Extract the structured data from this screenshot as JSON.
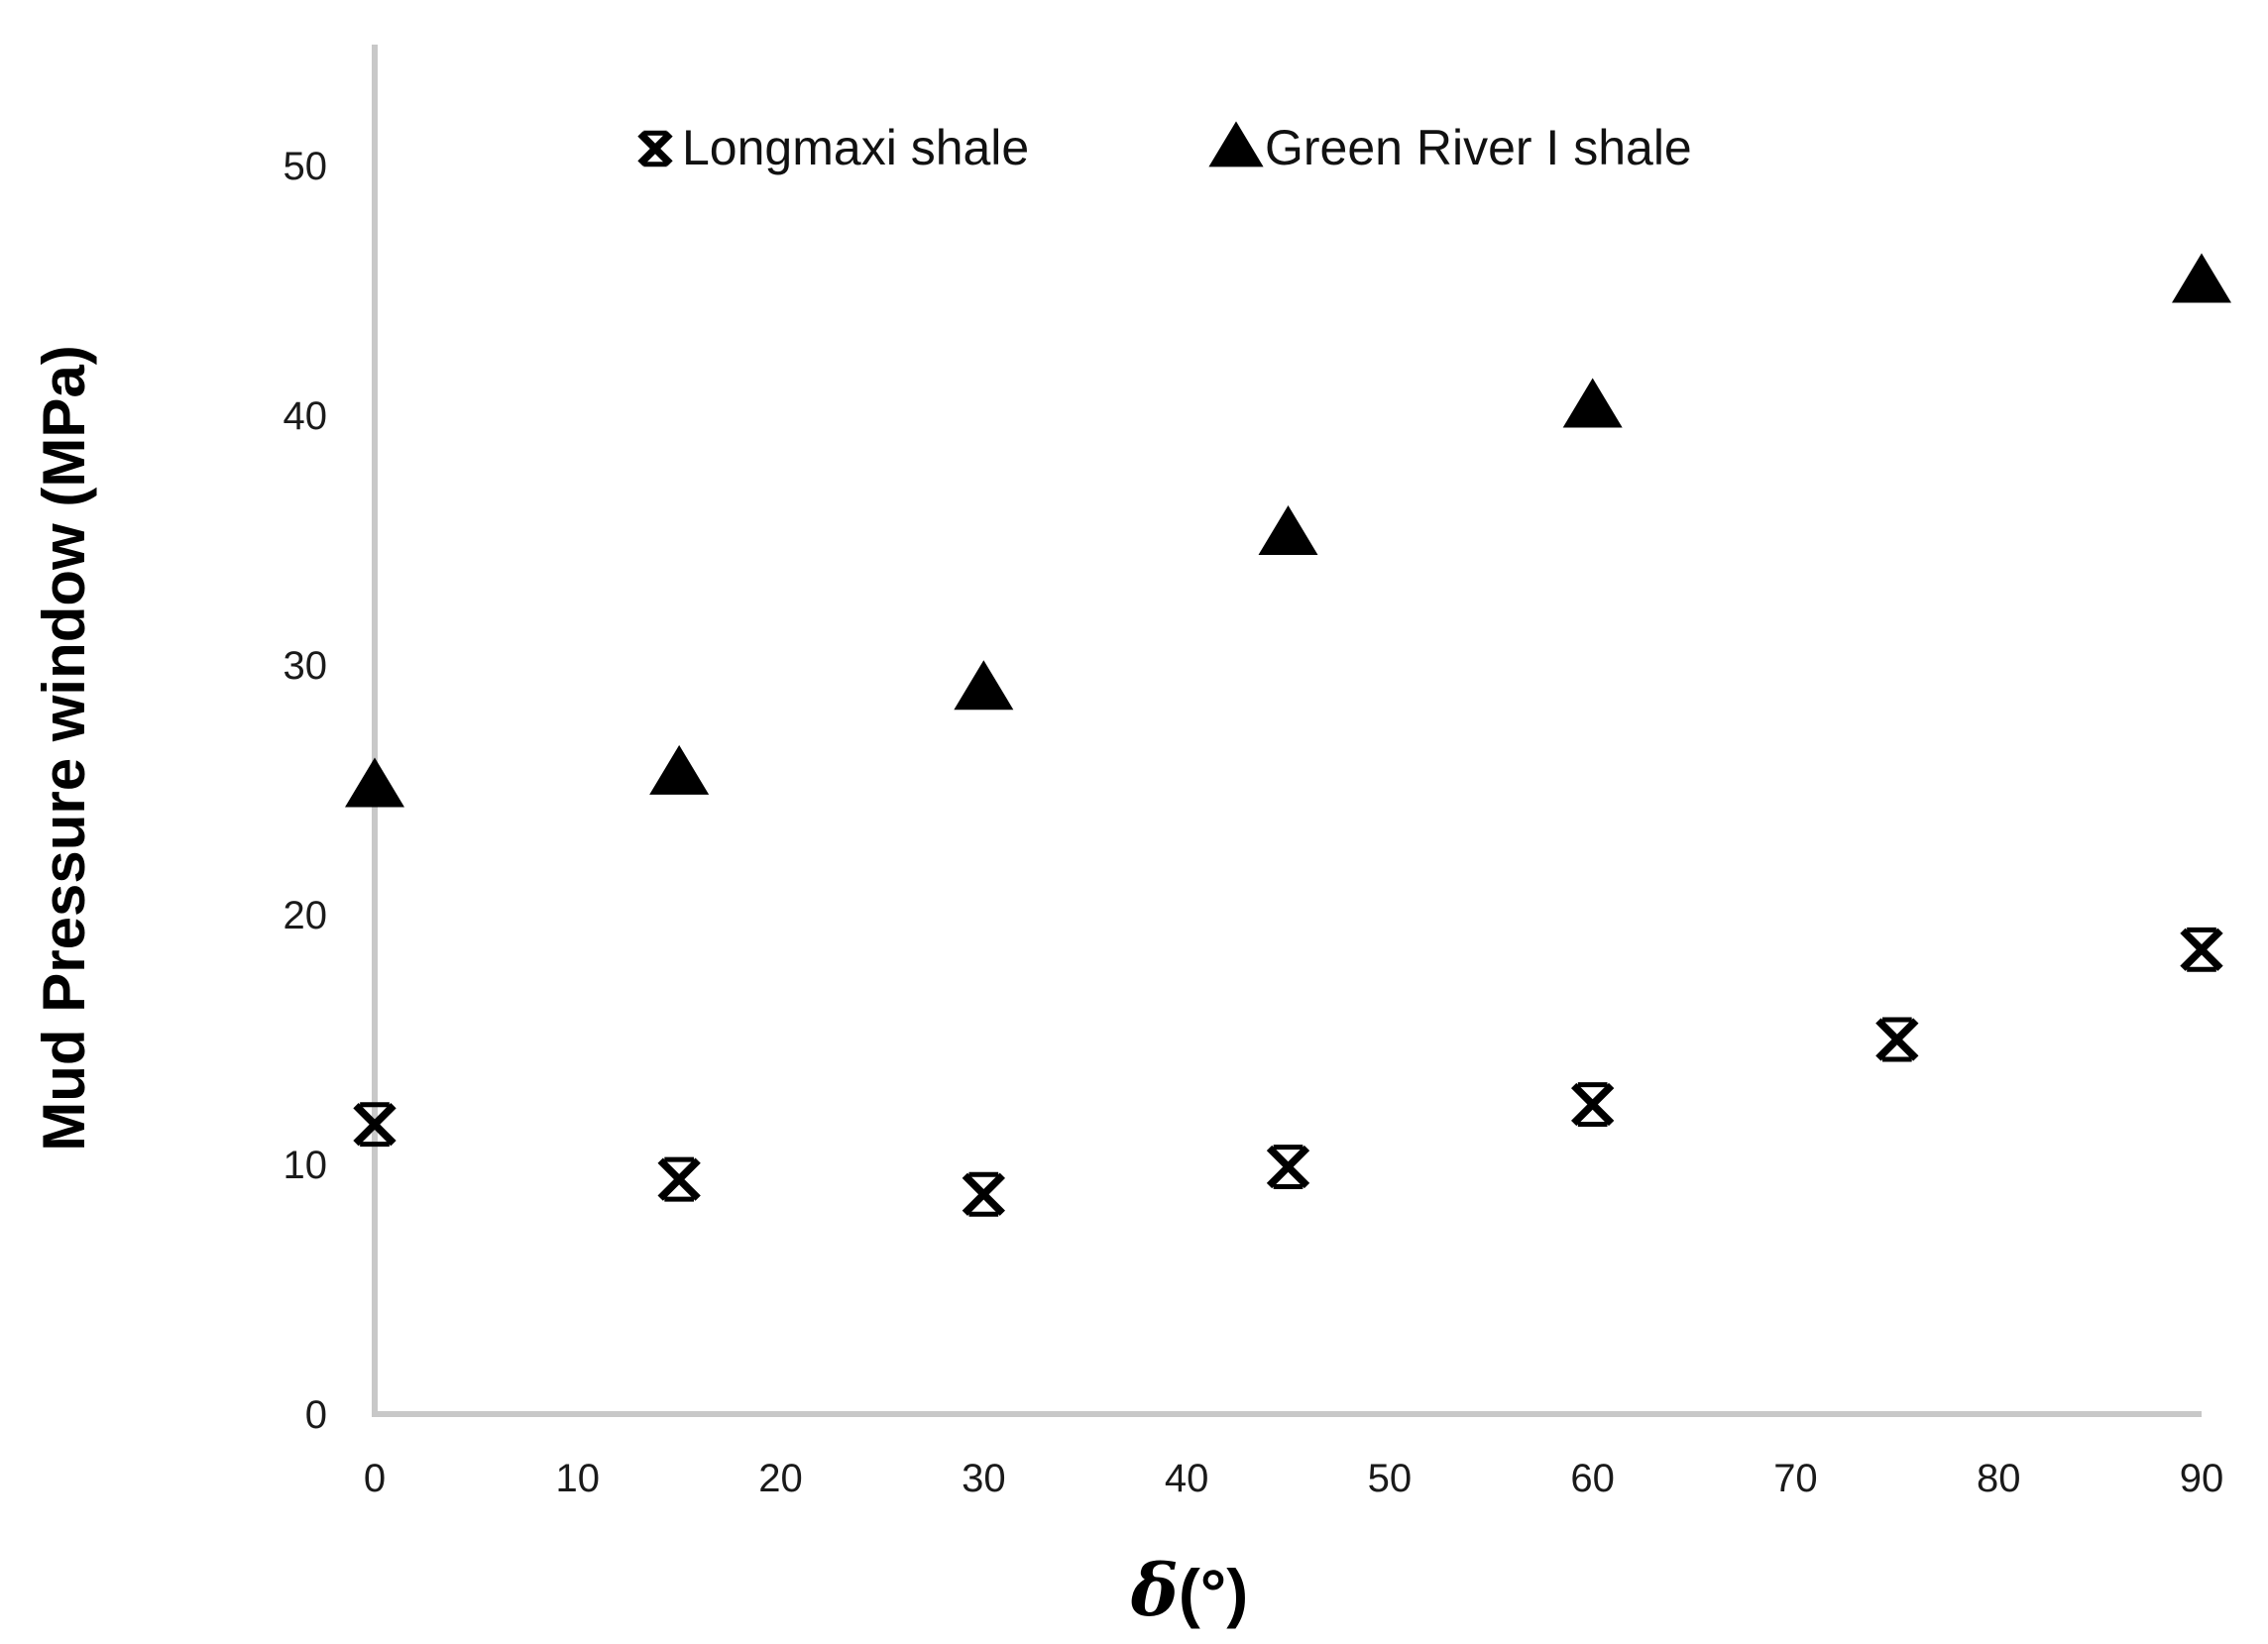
{
  "chart_data": {
    "type": "scatter",
    "title": "",
    "xlabel_symbol": "δ",
    "xlabel_unit": "(°)",
    "ylabel": "Mud Pressure  window (MPa)",
    "xlim": [
      0,
      90
    ],
    "ylim": [
      0,
      55
    ],
    "x_ticks": [
      "0",
      "10",
      "20",
      "30",
      "40",
      "50",
      "60",
      "70",
      "80",
      "90"
    ],
    "y_ticks": [
      "0",
      "10",
      "20",
      "30",
      "40",
      "50"
    ],
    "grid": false,
    "legend_position": "top",
    "colors": {
      "axis": "#c8c8c8",
      "marker": "#000000"
    },
    "series": [
      {
        "name": "Longmaxi shale",
        "marker": "asterisk",
        "x": [
          0,
          15,
          30,
          45,
          60,
          75,
          90
        ],
        "y": [
          11.6,
          9.4,
          8.8,
          9.9,
          12.4,
          15.0,
          18.6
        ]
      },
      {
        "name": "Green River I shale",
        "marker": "triangle",
        "x": [
          0,
          15,
          30,
          60,
          45,
          90
        ],
        "y": [
          25.1,
          25.6,
          29.0,
          40.3,
          35.2,
          45.3
        ]
      }
    ]
  }
}
